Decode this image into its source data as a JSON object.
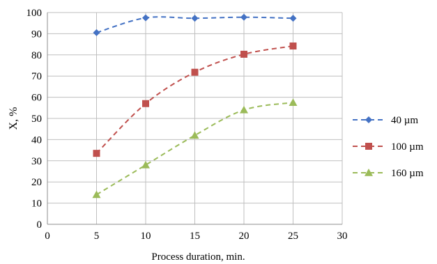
{
  "chart_data": {
    "type": "line",
    "xlabel": "Process duration, min.",
    "ylabel": "X, %",
    "xlim": [
      0,
      30
    ],
    "ylim": [
      0,
      100
    ],
    "xticks": [
      0,
      5,
      10,
      15,
      20,
      25,
      30
    ],
    "yticks": [
      0,
      10,
      20,
      30,
      40,
      50,
      60,
      70,
      80,
      90,
      100
    ],
    "grid": true,
    "legend_position": "right",
    "x": [
      5,
      10,
      15,
      20,
      25
    ],
    "series": [
      {
        "name": "40 µm",
        "values": [
          90.5,
          97.5,
          97.3,
          97.8,
          97.3
        ],
        "color": "#4472C4",
        "marker": "diamond"
      },
      {
        "name": "100 µm",
        "values": [
          33.5,
          57,
          71.8,
          80.3,
          84.2
        ],
        "color": "#C0504D",
        "marker": "square"
      },
      {
        "name": "160 µm",
        "values": [
          14,
          28,
          42,
          54,
          57.5
        ],
        "color": "#9BBB59",
        "marker": "triangle"
      }
    ]
  }
}
